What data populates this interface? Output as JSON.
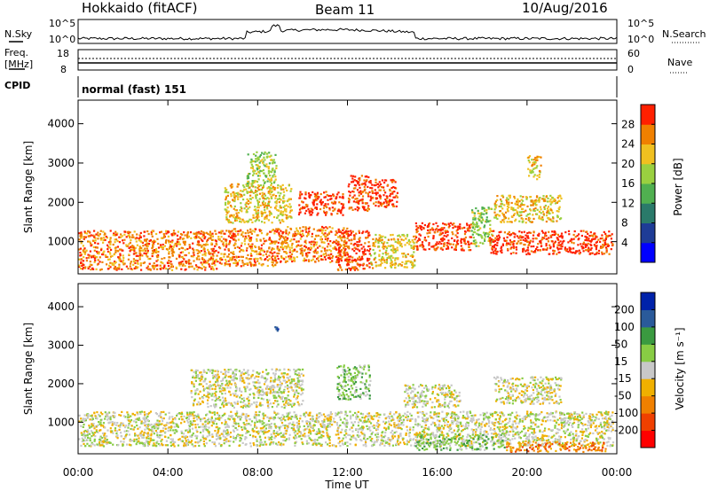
{
  "header": {
    "station": "Hokkaido (fitACF)",
    "beam": "Beam 11",
    "date": "10/Aug/2016"
  },
  "top_strip": {
    "left_label": "N.Sky",
    "right_label": "N.Search",
    "left_ticks": [
      "10^5",
      "10^0"
    ],
    "right_ticks": [
      "10^5",
      "10^0"
    ]
  },
  "freq_strip": {
    "left_label_1": "Freq.",
    "left_label_2": "[MHz]",
    "left_ticks": [
      "18",
      "8"
    ],
    "right_label": "Nave",
    "right_ticks": [
      "60",
      "0"
    ]
  },
  "cpid": {
    "label": "CPID",
    "value": "normal (fast) 151"
  },
  "chart_data": [
    {
      "type": "heatmap",
      "name": "power",
      "ylabel": "Slant Range [km]",
      "ylim": [
        180,
        4600
      ],
      "yticks": [
        1000,
        2000,
        3000,
        4000
      ],
      "xlim_hours": [
        0,
        24
      ],
      "colorbar": {
        "label": "Power [dB]",
        "ticks": [
          "28",
          "24",
          "20",
          "16",
          "12",
          "8",
          "4"
        ],
        "colors": [
          "#0000ff",
          "#1e3c96",
          "#2a7a6a",
          "#50b050",
          "#9ad040",
          "#f0c020",
          "#f08000",
          "#ff2000"
        ]
      },
      "features": [
        {
          "t": [
            0.0,
            6.2
          ],
          "r": [
            300,
            1300
          ],
          "level": 6
        },
        {
          "t": [
            6.2,
            9.0
          ],
          "r": [
            400,
            1350
          ],
          "level": 6
        },
        {
          "t": [
            9.0,
            12.0
          ],
          "r": [
            500,
            1400
          ],
          "level": 6
        },
        {
          "t": [
            11.5,
            13.0
          ],
          "r": [
            300,
            1300
          ],
          "level": 7
        },
        {
          "t": [
            13.0,
            15.0
          ],
          "r": [
            350,
            1200
          ],
          "level": 5
        },
        {
          "t": [
            15.0,
            17.5
          ],
          "r": [
            800,
            1500
          ],
          "level": 7
        },
        {
          "t": [
            17.5,
            18.4
          ],
          "r": [
            900,
            1900
          ],
          "level": 4
        },
        {
          "t": [
            18.3,
            23.8
          ],
          "r": [
            700,
            1300
          ],
          "level": 7
        },
        {
          "t": [
            9.8,
            11.8
          ],
          "r": [
            1700,
            2300
          ],
          "level": 7
        },
        {
          "t": [
            12.0,
            13.0
          ],
          "r": [
            1800,
            2700
          ],
          "level": 7
        },
        {
          "t": [
            13.0,
            14.2
          ],
          "r": [
            1900,
            2600
          ],
          "level": 7
        },
        {
          "t": [
            6.5,
            9.5
          ],
          "r": [
            1500,
            2500
          ],
          "level": 5
        },
        {
          "t": [
            7.5,
            8.8
          ],
          "r": [
            2500,
            3300
          ],
          "level": 4
        },
        {
          "t": [
            18.5,
            21.5
          ],
          "r": [
            1500,
            2200
          ],
          "level": 5
        },
        {
          "t": [
            20.0,
            20.6
          ],
          "r": [
            2600,
            3200
          ],
          "level": 5
        }
      ]
    },
    {
      "type": "heatmap",
      "name": "velocity",
      "ylabel": "Slant Range [km]",
      "ylim": [
        180,
        4600
      ],
      "yticks": [
        1000,
        2000,
        3000,
        4000
      ],
      "xlim_hours": [
        0,
        24
      ],
      "xticks": [
        "00:00",
        "04:00",
        "08:00",
        "12:00",
        "16:00",
        "20:00",
        "00:00"
      ],
      "xlabel": "Time UT",
      "colorbar": {
        "label": "Velocity [m s⁻¹]",
        "ticks": [
          "200",
          "100",
          "50",
          "15",
          "-15",
          "-50",
          "-100",
          "-200"
        ],
        "colors": [
          "#ff0000",
          "#f04000",
          "#f08000",
          "#f0b000",
          "#c8c8c8",
          "#88cc44",
          "#3a9a40",
          "#2a5a9a",
          "#0022aa"
        ]
      },
      "features": [
        {
          "t": [
            0.0,
            23.8
          ],
          "r": [
            400,
            1300
          ],
          "level": 4
        },
        {
          "t": [
            5.0,
            10.0
          ],
          "r": [
            1400,
            2400
          ],
          "level": 4
        },
        {
          "t": [
            11.5,
            13.0
          ],
          "r": [
            1600,
            2500
          ],
          "level": 5
        },
        {
          "t": [
            14.5,
            17.0
          ],
          "r": [
            1400,
            2000
          ],
          "level": 4
        },
        {
          "t": [
            15.0,
            19.0
          ],
          "r": [
            300,
            700
          ],
          "level": 5
        },
        {
          "t": [
            19.0,
            23.5
          ],
          "r": [
            250,
            500
          ],
          "level": 2
        },
        {
          "t": [
            8.7,
            8.9
          ],
          "r": [
            3300,
            3500
          ],
          "level": 8
        },
        {
          "t": [
            18.5,
            21.5
          ],
          "r": [
            1500,
            2200
          ],
          "level": 4
        }
      ]
    }
  ]
}
